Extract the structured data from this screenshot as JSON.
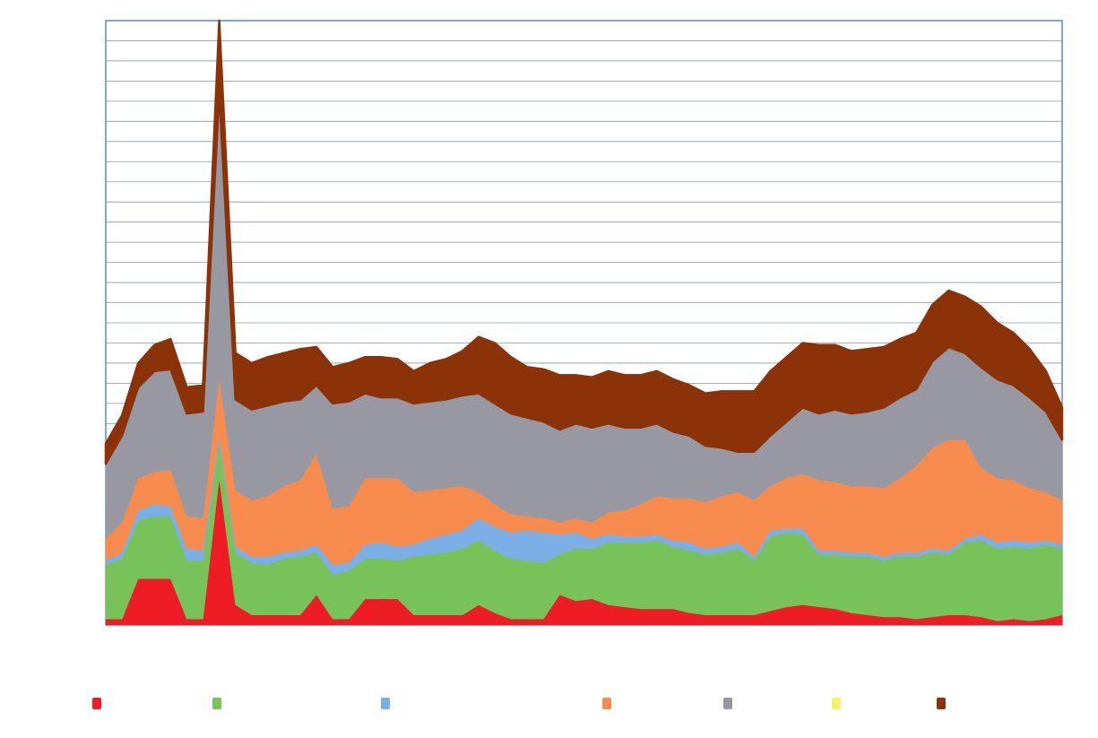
{
  "chart_data": {
    "type": "area",
    "stacked": true,
    "title": "",
    "xlabel": "",
    "ylabel": "",
    "ylim": [
      0,
      30
    ],
    "grid": true,
    "legend_position": "bottom",
    "series": [
      {
        "color": "#ee1c25",
        "values": [
          0.3,
          0.3,
          2.3,
          2.3,
          2.3,
          0.3,
          0.3,
          7.3,
          1.0,
          0.5,
          0.5,
          0.5,
          0.5,
          1.5,
          0.3,
          0.3,
          1.3,
          1.3,
          1.3,
          0.5,
          0.5,
          0.5,
          0.5,
          1.0,
          0.6,
          0.3,
          0.3,
          0.3,
          1.5,
          1.2,
          1.3,
          1.0,
          0.9,
          0.8,
          0.8,
          0.8,
          0.6,
          0.5,
          0.5,
          0.5,
          0.5,
          0.7,
          0.9,
          1.0,
          0.9,
          0.8,
          0.6,
          0.5,
          0.4,
          0.4,
          0.3,
          0.4,
          0.5,
          0.5,
          0.4,
          0.2,
          0.3,
          0.2,
          0.3,
          0.5
        ]
      },
      {
        "color": "#77c35a",
        "values": [
          2.7,
          3.0,
          2.9,
          3.1,
          3.1,
          2.9,
          2.9,
          1.8,
          2.6,
          2.6,
          2.5,
          2.8,
          2.9,
          2.1,
          2.2,
          2.4,
          2.0,
          2.0,
          1.9,
          2.9,
          3.0,
          3.1,
          3.3,
          3.2,
          3.1,
          3.0,
          2.9,
          2.8,
          2.0,
          2.6,
          2.5,
          3.1,
          3.2,
          3.3,
          3.4,
          3.1,
          3.1,
          3.0,
          3.1,
          3.3,
          2.7,
          3.7,
          3.7,
          3.5,
          2.6,
          2.7,
          2.8,
          2.9,
          2.8,
          3.0,
          3.1,
          3.2,
          3.0,
          3.6,
          3.8,
          3.6,
          3.6,
          3.6,
          3.7,
          3.3
        ]
      },
      {
        "color": "#7aaee5",
        "values": [
          0.2,
          0.3,
          0.5,
          0.6,
          0.5,
          0.6,
          0.5,
          0.3,
          0.3,
          0.3,
          0.4,
          0.3,
          0.3,
          0.4,
          0.5,
          0.4,
          0.7,
          0.8,
          0.7,
          0.6,
          0.8,
          0.9,
          0.9,
          1.1,
          1.2,
          1.3,
          1.5,
          1.5,
          1.0,
          0.8,
          0.5,
          0.4,
          0.3,
          0.3,
          0.3,
          0.3,
          0.4,
          0.3,
          0.3,
          0.3,
          0.2,
          0.3,
          0.2,
          0.3,
          0.2,
          0.2,
          0.2,
          0.2,
          0.2,
          0.2,
          0.2,
          0.2,
          0.2,
          0.2,
          0.3,
          0.3,
          0.3,
          0.3,
          0.2,
          0.2
        ]
      },
      {
        "color": "#f78b4d",
        "values": [
          1.1,
          1.5,
          1.6,
          1.6,
          1.8,
          1.6,
          1.6,
          2.9,
          2.8,
          2.8,
          3.0,
          3.3,
          3.5,
          4.5,
          2.8,
          2.8,
          3.3,
          3.2,
          3.4,
          2.6,
          2.4,
          2.3,
          2.2,
          1.3,
          1.1,
          0.9,
          0.7,
          0.7,
          0.6,
          0.7,
          0.8,
          1.1,
          1.3,
          1.6,
          1.9,
          2.1,
          2.2,
          2.3,
          2.5,
          2.5,
          2.8,
          2.2,
          2.5,
          2.7,
          3.5,
          3.4,
          3.3,
          3.3,
          3.4,
          3.7,
          4.3,
          5.0,
          5.5,
          4.9,
          3.3,
          3.2,
          3.0,
          2.7,
          2.4,
          2.2
        ]
      },
      {
        "color": "#9898a3",
        "values": [
          3.7,
          4.3,
          4.5,
          5.0,
          5.0,
          5.1,
          5.3,
          14.2,
          4.5,
          4.5,
          4.5,
          4.2,
          4.0,
          3.4,
          5.2,
          5.2,
          4.2,
          4.0,
          4.0,
          4.4,
          4.4,
          4.4,
          4.5,
          4.9,
          5.0,
          5.0,
          4.9,
          4.8,
          4.6,
          4.7,
          4.7,
          4.4,
          4.1,
          3.8,
          3.6,
          3.3,
          3.1,
          2.8,
          2.4,
          2.0,
          2.4,
          2.5,
          2.8,
          3.3,
          3.3,
          3.6,
          3.6,
          3.7,
          4.0,
          4.0,
          3.8,
          4.3,
          4.6,
          4.3,
          5.0,
          4.9,
          4.7,
          4.5,
          4.0,
          3.0
        ]
      },
      {
        "color": "#f4f46c",
        "values": [
          0,
          0,
          0,
          0,
          0,
          0,
          0,
          0,
          0,
          0,
          0,
          0,
          0,
          0,
          0,
          0,
          0,
          0,
          0,
          0,
          0,
          0,
          0,
          0,
          0,
          0,
          0,
          0,
          0,
          0,
          0,
          0,
          0,
          0,
          0,
          0,
          0,
          0,
          0,
          0,
          0,
          0,
          0,
          0,
          0,
          0,
          0,
          0,
          0,
          0,
          0,
          0,
          0,
          0,
          0,
          0,
          0,
          0,
          0,
          0
        ]
      },
      {
        "color": "#8b3209",
        "values": [
          1.0,
          1.0,
          1.2,
          1.3,
          1.5,
          1.3,
          1.3,
          3.5,
          2.3,
          2.3,
          2.4,
          2.4,
          2.5,
          1.9,
          1.8,
          1.9,
          1.8,
          2.0,
          1.9,
          1.6,
          1.9,
          2.0,
          2.2,
          2.8,
          3.0,
          2.8,
          2.5,
          2.6,
          2.7,
          2.4,
          2.5,
          2.6,
          2.6,
          2.6,
          2.6,
          2.6,
          2.5,
          2.6,
          2.8,
          3.0,
          3.0,
          3.2,
          3.2,
          3.2,
          3.4,
          3.2,
          3.1,
          3.1,
          3.0,
          2.9,
          2.8,
          2.8,
          2.8,
          2.8,
          3.0,
          2.8,
          2.6,
          2.4,
          2.0,
          1.6
        ]
      }
    ],
    "legend": {
      "swatch_colors": [
        "#ee1c25",
        "#77c35a",
        "#7aaee5",
        "#f78b4d",
        "#9898a3",
        "#f4f46c",
        "#8b3209"
      ]
    }
  }
}
